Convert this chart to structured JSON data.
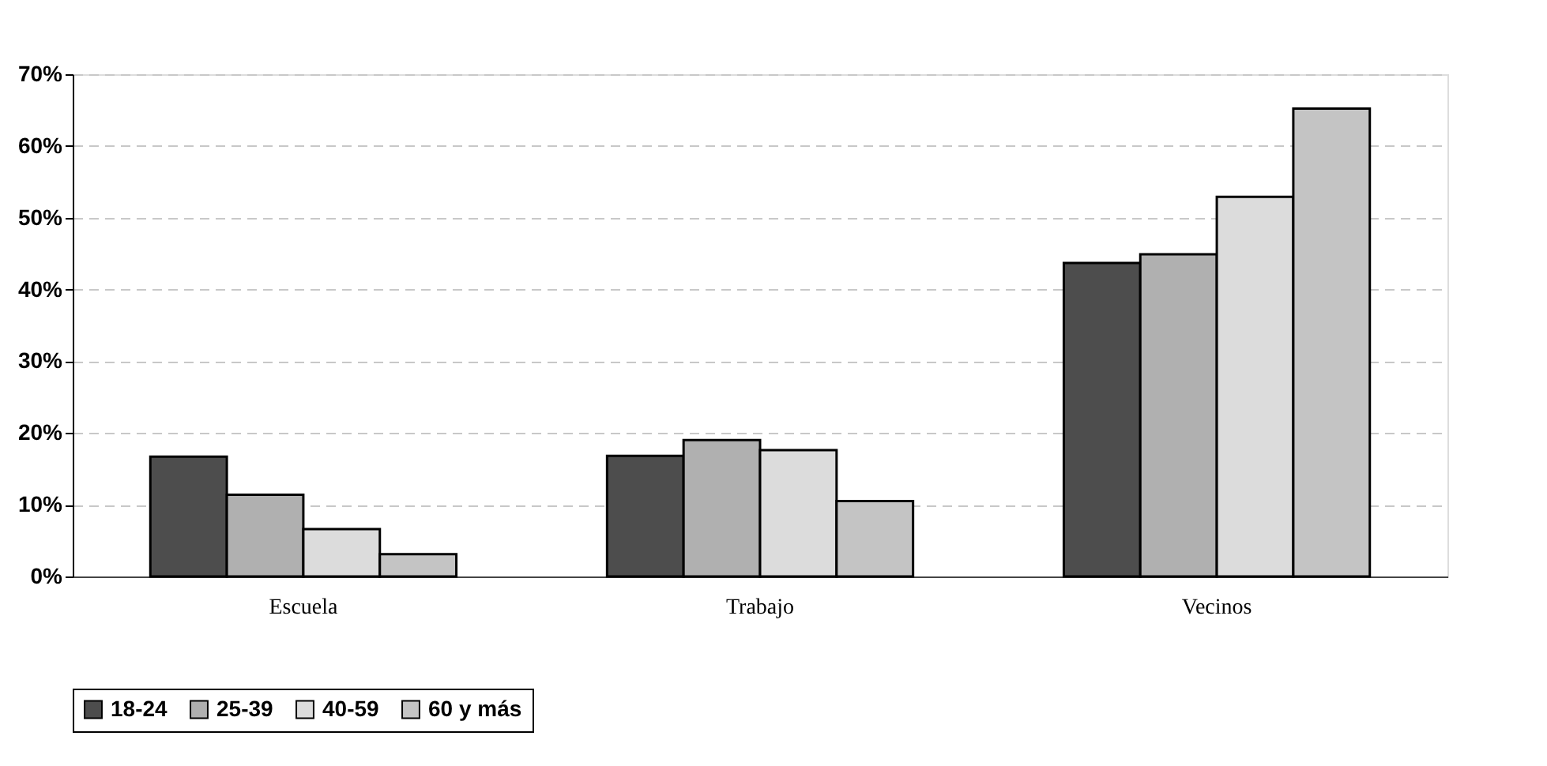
{
  "chart_data": {
    "type": "bar",
    "categories": [
      "Escuela",
      "Trabajo",
      "Vecinos"
    ],
    "series": [
      {
        "name": "18-24",
        "color": "#4d4d4d",
        "values": [
          16.7,
          16.8,
          43.7
        ]
      },
      {
        "name": "25-39",
        "color": "#b0b0b0",
        "values": [
          11.4,
          19.0,
          44.9
        ]
      },
      {
        "name": "40-59",
        "color": "#dcdcdc",
        "values": [
          6.6,
          17.6,
          52.9
        ]
      },
      {
        "name": "60 y más",
        "color": "#c4c4c4",
        "values": [
          3.1,
          10.5,
          65.2
        ]
      }
    ],
    "ylim": [
      0,
      70
    ],
    "yticks": [
      {
        "value": 0,
        "label": "0%"
      },
      {
        "value": 10,
        "label": "10%"
      },
      {
        "value": 20,
        "label": "20%"
      },
      {
        "value": 30,
        "label": "30%"
      },
      {
        "value": 40,
        "label": "40%"
      },
      {
        "value": 50,
        "label": "50%"
      },
      {
        "value": 60,
        "label": "60%"
      },
      {
        "value": 70,
        "label": "70%"
      }
    ],
    "grid": "y",
    "legend": "bottom"
  }
}
